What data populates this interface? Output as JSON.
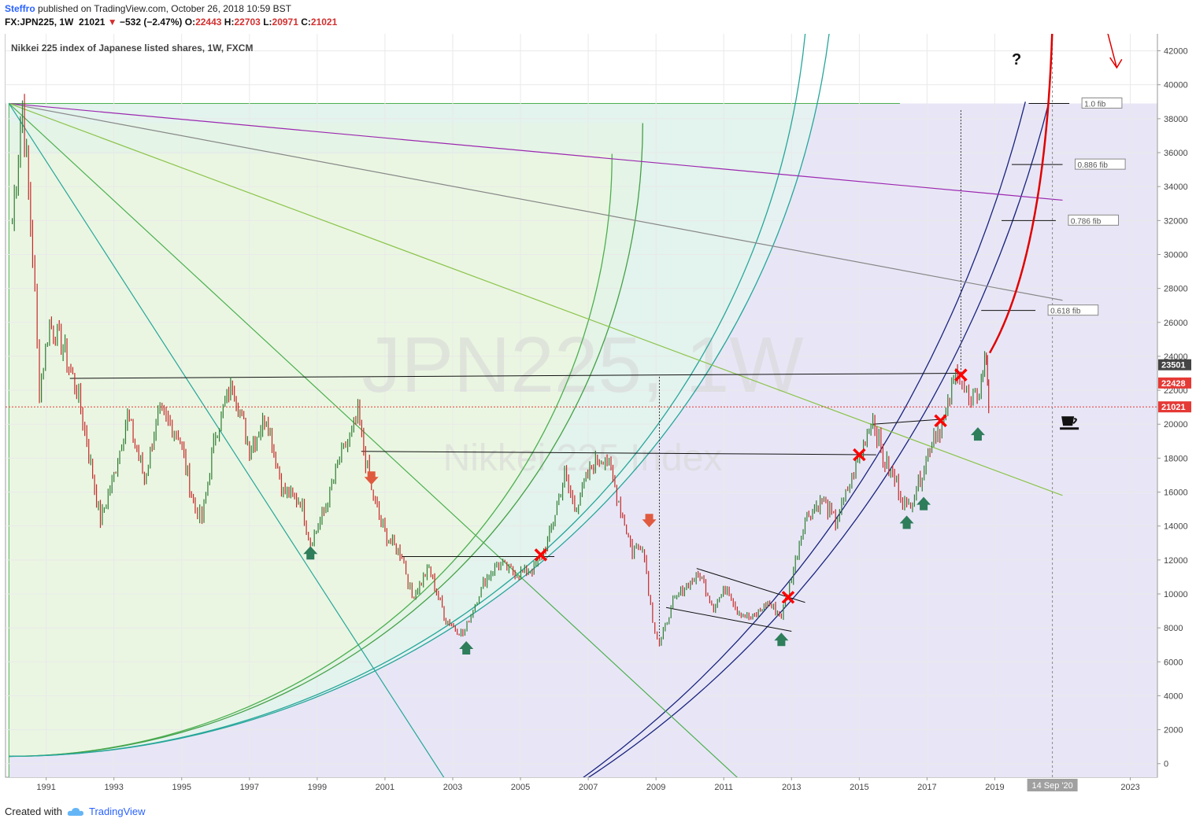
{
  "header": {
    "author": "Steffro",
    "published_text": "published on TradingView.com, October 26, 2018 10:59 BST",
    "symbol": "FX:JPN225, 1W",
    "last": "21021",
    "change": "−532 (−2.47%)",
    "open_label": "O:",
    "open": "22443",
    "high_label": "H:",
    "high": "22703",
    "low_label": "L:",
    "low": "20971",
    "close_label": "C:",
    "close": "21021"
  },
  "chart_data": {
    "type": "candlestick",
    "title": "Nikkei 225 index of Japanese listed shares, 1W, FXCM",
    "watermark_symbol": "JPN225, 1W",
    "watermark_name": "Nikkei 225 Index",
    "xlim": [
      1989.8,
      2023.8
    ],
    "ylim": [
      -800,
      43000
    ],
    "x_ticks": [
      "1991",
      "1993",
      "1995",
      "1997",
      "1999",
      "2001",
      "2003",
      "2005",
      "2007",
      "2009",
      "2011",
      "2013",
      "2015",
      "2017",
      "2019",
      "2023"
    ],
    "y_ticks": [
      0,
      2000,
      4000,
      6000,
      8000,
      10000,
      12000,
      14000,
      16000,
      18000,
      20000,
      22000,
      24000,
      26000,
      28000,
      30000,
      32000,
      34000,
      36000,
      38000,
      40000,
      42000
    ],
    "price_tags": [
      {
        "value": 23501,
        "label": "23501",
        "color": "#444444"
      },
      {
        "value": 22428,
        "label": "22428",
        "color": "#e53935"
      },
      {
        "value": 21021,
        "label": "21021",
        "color": "#e53935"
      }
    ],
    "time_marker": {
      "x": 2020.7,
      "label": "14 Sep '20"
    },
    "price_path": [
      [
        1990.0,
        32000
      ],
      [
        1990.3,
        38900
      ],
      [
        1990.6,
        30000
      ],
      [
        1990.8,
        22000
      ],
      [
        1991.1,
        26000
      ],
      [
        1991.5,
        24500
      ],
      [
        1991.9,
        22000
      ],
      [
        1992.2,
        19000
      ],
      [
        1992.6,
        14300
      ],
      [
        1993.0,
        17000
      ],
      [
        1993.4,
        20500
      ],
      [
        1993.9,
        16800
      ],
      [
        1994.3,
        20500
      ],
      [
        1994.9,
        19500
      ],
      [
        1995.4,
        15000
      ],
      [
        1995.6,
        14400
      ],
      [
        1996.0,
        19500
      ],
      [
        1996.5,
        22500
      ],
      [
        1997.0,
        18500
      ],
      [
        1997.5,
        20500
      ],
      [
        1998.0,
        16000
      ],
      [
        1998.5,
        15500
      ],
      [
        1998.8,
        13000
      ],
      [
        1999.2,
        14800
      ],
      [
        1999.6,
        17500
      ],
      [
        2000.2,
        20500
      ],
      [
        2000.6,
        16000
      ],
      [
        2001.0,
        13500
      ],
      [
        2001.5,
        12300
      ],
      [
        2001.8,
        9800
      ],
      [
        2002.3,
        11500
      ],
      [
        2002.8,
        8500
      ],
      [
        2003.3,
        7600
      ],
      [
        2003.9,
        10600
      ],
      [
        2004.3,
        11800
      ],
      [
        2004.9,
        11200
      ],
      [
        2005.4,
        11500
      ],
      [
        2005.8,
        13000
      ],
      [
        2006.3,
        17000
      ],
      [
        2006.6,
        15000
      ],
      [
        2007.1,
        17500
      ],
      [
        2007.5,
        18200
      ],
      [
        2007.9,
        15500
      ],
      [
        2008.3,
        12500
      ],
      [
        2008.6,
        13000
      ],
      [
        2008.9,
        8500
      ],
      [
        2009.1,
        7000
      ],
      [
        2009.5,
        9500
      ],
      [
        2009.9,
        10500
      ],
      [
        2010.3,
        11200
      ],
      [
        2010.7,
        9200
      ],
      [
        2011.1,
        10500
      ],
      [
        2011.4,
        9000
      ],
      [
        2011.8,
        8500
      ],
      [
        2012.3,
        9500
      ],
      [
        2012.7,
        8700
      ],
      [
        2013.0,
        11000
      ],
      [
        2013.4,
        14500
      ],
      [
        2013.9,
        15500
      ],
      [
        2014.3,
        14200
      ],
      [
        2014.9,
        17500
      ],
      [
        2015.4,
        20500
      ],
      [
        2015.7,
        18000
      ],
      [
        2016.1,
        16500
      ],
      [
        2016.4,
        15000
      ],
      [
        2016.8,
        16800
      ],
      [
        2017.2,
        19500
      ],
      [
        2017.5,
        20000
      ],
      [
        2017.9,
        23500
      ],
      [
        2018.1,
        22000
      ],
      [
        2018.3,
        21000
      ],
      [
        2018.6,
        22500
      ],
      [
        2018.75,
        24200
      ],
      [
        2018.82,
        21021
      ]
    ],
    "horizontal_lines": [
      {
        "x1": 1991.7,
        "x2": 2018.0,
        "y1": 22700,
        "y2": 23000
      },
      {
        "x1": 2000.3,
        "x2": 2015.5,
        "y1": 18400,
        "y2": 18200
      },
      {
        "x1": 2001.5,
        "x2": 2006.0,
        "y1": 12200,
        "y2": 12200
      },
      {
        "x1": 2015.4,
        "x2": 2017.5,
        "y1": 20000,
        "y2": 20300
      }
    ],
    "trend_lines": [
      {
        "x1": 2010.2,
        "y1": 11500,
        "x2": 2013.4,
        "y2": 9500
      },
      {
        "x1": 2009.3,
        "y1": 9200,
        "x2": 2013.0,
        "y2": 7800
      }
    ],
    "fib_levels": [
      {
        "label": "1.0 fib",
        "value": 38900,
        "x1": 2020.0,
        "x2": 2021.2
      },
      {
        "label": "0.886 fib",
        "value": 35300,
        "x1": 2019.5,
        "x2": 2021.0
      },
      {
        "label": "0.786 fib",
        "value": 32000,
        "x1": 2019.2,
        "x2": 2020.8
      },
      {
        "label": "0.618 fib",
        "value": 26700,
        "x1": 2018.6,
        "x2": 2020.2
      }
    ],
    "fan_origin": {
      "x": 1989.9,
      "y": 38900
    },
    "fan_lines": [
      {
        "x2": 2021.0,
        "y2": 33200,
        "color": "#9c27b0"
      },
      {
        "x2": 2021.0,
        "y2": 27300,
        "color": "#888888"
      },
      {
        "x2": 2021.0,
        "y2": 15800,
        "color": "#8bc34a"
      },
      {
        "x2": 2011.5,
        "y2": -1000,
        "color": "#4caf50"
      },
      {
        "x2": 2002.8,
        "y2": -1000,
        "color": "#26a69a"
      }
    ],
    "sell_arrows": [
      {
        "x": 2000.6,
        "y": 16800
      },
      {
        "x": 2008.8,
        "y": 14300
      }
    ],
    "buy_arrows": [
      {
        "x": 1998.8,
        "y": 12400
      },
      {
        "x": 2003.4,
        "y": 6800
      },
      {
        "x": 2012.7,
        "y": 7300
      },
      {
        "x": 2016.4,
        "y": 14200
      },
      {
        "x": 2016.9,
        "y": 15300
      },
      {
        "x": 2018.5,
        "y": 19400
      }
    ],
    "x_marks": [
      {
        "x": 2005.6,
        "y": 12300
      },
      {
        "x": 2012.9,
        "y": 9800
      },
      {
        "x": 2015.0,
        "y": 18200
      },
      {
        "x": 2017.4,
        "y": 20200
      },
      {
        "x": 2018.0,
        "y": 22900
      }
    ],
    "annotations": [
      {
        "text": "?",
        "x": 2019.5,
        "y": 41200
      }
    ]
  },
  "footer": {
    "created_with": "Created with",
    "brand": "TradingView"
  }
}
